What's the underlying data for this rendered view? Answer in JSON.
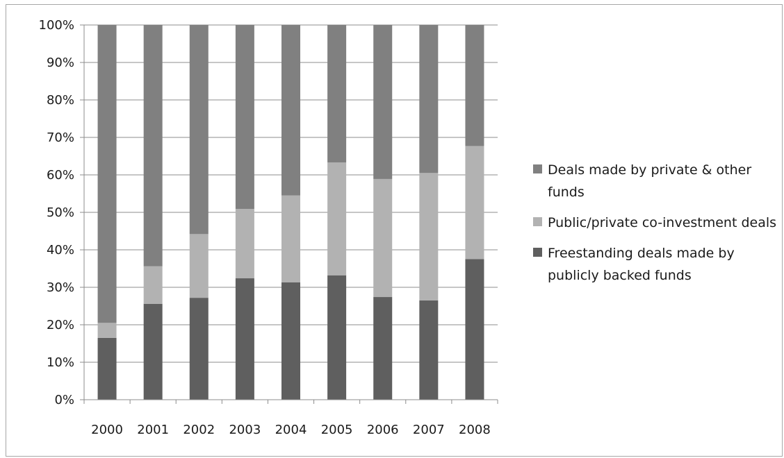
{
  "chart_data": {
    "type": "bar",
    "stacked": true,
    "categories": [
      "2000",
      "2001",
      "2002",
      "2003",
      "2004",
      "2005",
      "2006",
      "2007",
      "2008"
    ],
    "series": [
      {
        "name": "Freestanding deals made by publicly backed funds",
        "color": "#5f5f5f",
        "values": [
          16.5,
          25.6,
          27.2,
          32.4,
          31.3,
          33.2,
          27.4,
          26.5,
          37.5
        ]
      },
      {
        "name": "Public/private co-investment deals",
        "color": "#b2b2b2",
        "values": [
          4.0,
          10.0,
          17.0,
          18.5,
          23.2,
          30.1,
          31.5,
          34.0,
          30.2
        ]
      },
      {
        "name": "Deals made by private & other funds",
        "color": "#808080",
        "values": [
          79.5,
          64.4,
          55.8,
          49.1,
          45.5,
          36.7,
          41.1,
          39.5,
          32.3
        ]
      }
    ],
    "y_ticks": [
      "0%",
      "10%",
      "20%",
      "30%",
      "40%",
      "50%",
      "60%",
      "70%",
      "80%",
      "90%",
      "100%"
    ],
    "ylim": [
      0,
      100
    ],
    "grid": true,
    "legend_position": "right",
    "legend_order": [
      2,
      1,
      0
    ]
  }
}
